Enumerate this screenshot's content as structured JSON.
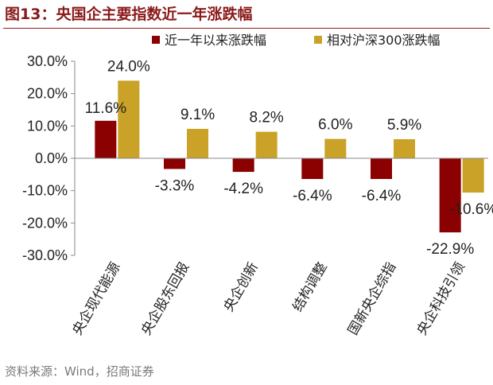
{
  "header": {
    "title": "图13：央国企主要指数近一年涨跌幅"
  },
  "footer": {
    "source": "资料来源：Wind，招商证券"
  },
  "colors": {
    "title": "#8B1A1A",
    "series1": "#8B0000",
    "series2": "#C9A227"
  },
  "chart_data": {
    "type": "bar",
    "categories": [
      "央企现代能源",
      "央企股东回报",
      "央企创新",
      "结构调整",
      "国新央企综指",
      "央企科技引领"
    ],
    "series": [
      {
        "name": "近一年以来涨跌幅",
        "values": [
          11.6,
          -3.3,
          -4.2,
          -6.4,
          -6.4,
          -22.9
        ],
        "labels": [
          "11.6%",
          "-3.3%",
          "-4.2%",
          "-6.4%",
          "-6.4%",
          "-22.9%"
        ]
      },
      {
        "name": "相对沪深300涨跌幅",
        "values": [
          24.0,
          9.1,
          8.2,
          6.0,
          5.9,
          -10.6
        ],
        "labels": [
          "24.0%",
          "9.1%",
          "8.2%",
          "6.0%",
          "5.9%",
          "-10.6%"
        ]
      }
    ],
    "ylim": [
      -30,
      30
    ],
    "yticks": [
      30,
      20,
      10,
      0,
      -10,
      -20,
      -30
    ],
    "ytick_labels": [
      "30.0%",
      "20.0%",
      "10.0%",
      "0.0%",
      "-10.0%",
      "-20.0%",
      "-30.0%"
    ],
    "legend": "top-right",
    "grid": false
  }
}
